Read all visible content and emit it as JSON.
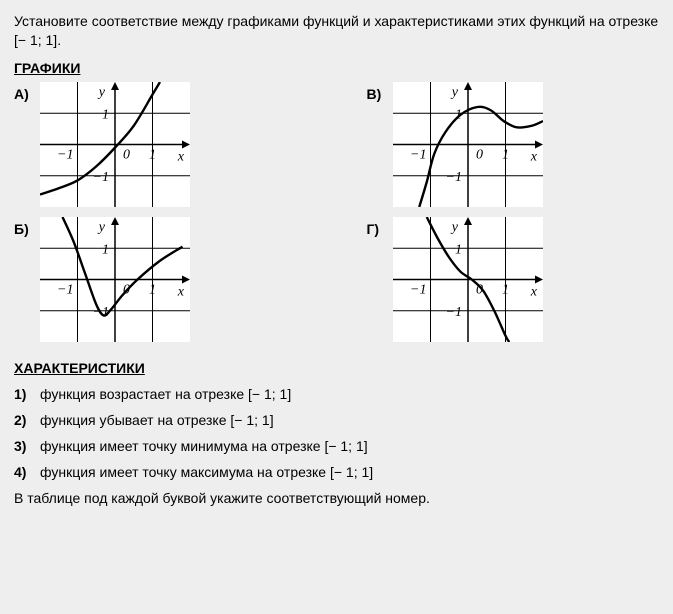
{
  "prompt": {
    "prefix": "Установите соответствие между графиками функций и характеристиками этих функций на отрезке ",
    "interval": "[− 1; 1]",
    "suffix": "."
  },
  "headings": {
    "graphs": "ГРАФИКИ",
    "characteristics": "ХАРАКТЕРИСТИКИ"
  },
  "graph_labels": {
    "A": "А)",
    "B": "Б)",
    "V": "В)",
    "G": "Г)"
  },
  "axis": {
    "x_label": "x",
    "y_label": "y",
    "tick_neg1": "−1",
    "tick_pos1": "1",
    "origin": "0",
    "box_bg": "#ffffff",
    "grid_color": "#000000",
    "axis_color": "#000000",
    "curve_color": "#000000",
    "curve_width": 2.4,
    "xlim": [
      -2,
      2
    ],
    "ylim": [
      -2,
      2
    ]
  },
  "graphs": {
    "A": {
      "type": "line",
      "description": "increasing on [-1,1]",
      "points": [
        [
          -2,
          -1.6
        ],
        [
          -1.5,
          -1.4
        ],
        [
          -1,
          -1.15
        ],
        [
          -0.5,
          -0.7
        ],
        [
          0,
          -0.1
        ],
        [
          0.5,
          0.6
        ],
        [
          1,
          1.6
        ],
        [
          1.2,
          2
        ]
      ]
    },
    "B": {
      "type": "line",
      "description": "minimum on [-1,1]",
      "points": [
        [
          -1.4,
          2
        ],
        [
          -1.1,
          1.2
        ],
        [
          -0.8,
          0.2
        ],
        [
          -0.5,
          -0.8
        ],
        [
          -0.3,
          -1.15
        ],
        [
          -0.1,
          -0.95
        ],
        [
          0.2,
          -0.5
        ],
        [
          0.6,
          0
        ],
        [
          1.2,
          0.6
        ],
        [
          1.8,
          1.05
        ]
      ]
    },
    "V": {
      "type": "line",
      "description": "maximum on [-1,1]",
      "points": [
        [
          -1.3,
          -2
        ],
        [
          -1.1,
          -1.2
        ],
        [
          -0.9,
          -0.3
        ],
        [
          -0.6,
          0.4
        ],
        [
          -0.2,
          0.95
        ],
        [
          0.25,
          1.2
        ],
        [
          0.6,
          1.1
        ],
        [
          0.95,
          0.75
        ],
        [
          1.3,
          0.55
        ],
        [
          1.7,
          0.6
        ],
        [
          2,
          0.75
        ]
      ]
    },
    "G": {
      "type": "line",
      "description": "decreasing on [-1,1]",
      "points": [
        [
          -1.1,
          2
        ],
        [
          -0.8,
          1.3
        ],
        [
          -0.5,
          0.7
        ],
        [
          -0.2,
          0.25
        ],
        [
          0.1,
          0
        ],
        [
          0.4,
          -0.35
        ],
        [
          0.7,
          -1.0
        ],
        [
          1.0,
          -1.8
        ],
        [
          1.1,
          -2
        ]
      ]
    }
  },
  "options": [
    {
      "num": "1)",
      "text": "функция возрастает на отрезке [− 1; 1]"
    },
    {
      "num": "2)",
      "text": "функция убывает на отрезке [− 1; 1]"
    },
    {
      "num": "3)",
      "text": "функция имеет точку минимума на отрезке [− 1; 1]"
    },
    {
      "num": "4)",
      "text": "функция имеет точку максимума на отрезке [− 1; 1]"
    }
  ],
  "footer": "В таблице под каждой буквой укажите соответствующий номер."
}
